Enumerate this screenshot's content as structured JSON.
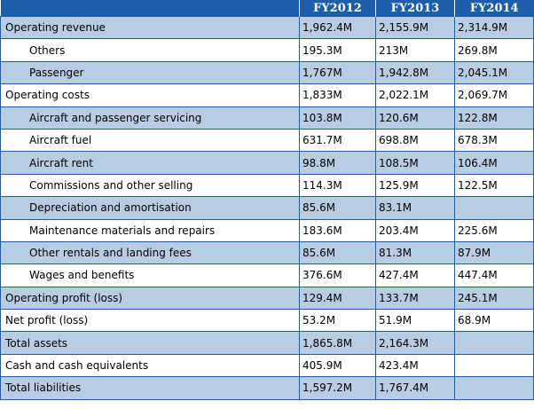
{
  "table": {
    "headers": [
      "",
      "FY2012",
      "FY2013",
      "FY2014"
    ],
    "rows": [
      {
        "label": "Operating revenue",
        "indent": false,
        "values": [
          "1,962.4M",
          "2,155.9M",
          "2,314.9M"
        ]
      },
      {
        "label": "Others",
        "indent": true,
        "values": [
          "195.3M",
          "213M",
          "269.8M"
        ]
      },
      {
        "label": "Passenger",
        "indent": true,
        "values": [
          "1,767M",
          "1,942.8M",
          "2,045.1M"
        ]
      },
      {
        "label": "Operating costs",
        "indent": false,
        "values": [
          "1,833M",
          "2,022.1M",
          "2,069.7M"
        ]
      },
      {
        "label": "Aircraft and passenger servicing",
        "indent": true,
        "values": [
          "103.8M",
          "120.6M",
          "122.8M"
        ]
      },
      {
        "label": "Aircraft fuel",
        "indent": true,
        "values": [
          "631.7M",
          "698.8M",
          "678.3M"
        ]
      },
      {
        "label": "Aircraft rent",
        "indent": true,
        "values": [
          "98.8M",
          "108.5M",
          "106.4M"
        ]
      },
      {
        "label": "Commissions and other selling",
        "indent": true,
        "values": [
          "114.3M",
          "125.9M",
          "122.5M"
        ]
      },
      {
        "label": "Depreciation and amortisation",
        "indent": true,
        "values": [
          "85.6M",
          "83.1M",
          ""
        ]
      },
      {
        "label": "Maintenance materials and repairs",
        "indent": true,
        "values": [
          "183.6M",
          "203.4M",
          "225.6M"
        ]
      },
      {
        "label": "Other rentals and landing fees",
        "indent": true,
        "values": [
          "85.6M",
          "81.3M",
          "87.9M"
        ]
      },
      {
        "label": "Wages and benefits",
        "indent": true,
        "values": [
          "376.6M",
          "427.4M",
          "447.4M"
        ]
      },
      {
        "label": "Operating profit (loss)",
        "indent": false,
        "values": [
          "129.4M",
          "133.7M",
          "245.1M"
        ]
      },
      {
        "label": "Net profit (loss)",
        "indent": false,
        "values": [
          "53.2M",
          "51.9M",
          "68.9M"
        ]
      },
      {
        "label": "Total assets",
        "indent": false,
        "values": [
          "1,865.8M",
          "2,164.3M",
          ""
        ]
      },
      {
        "label": "Cash and cash equivalents",
        "indent": false,
        "values": [
          "405.9M",
          "423.4M",
          ""
        ]
      },
      {
        "label": "Total liabilities",
        "indent": false,
        "values": [
          "1,597.2M",
          "1,767.4M",
          ""
        ]
      }
    ]
  },
  "colors": {
    "header_bg": "#1c5fa8",
    "header_text": "#ffffff",
    "row_shade": "#b8cce4",
    "row_plain": "#ffffff",
    "border": "#1c5fa8"
  }
}
